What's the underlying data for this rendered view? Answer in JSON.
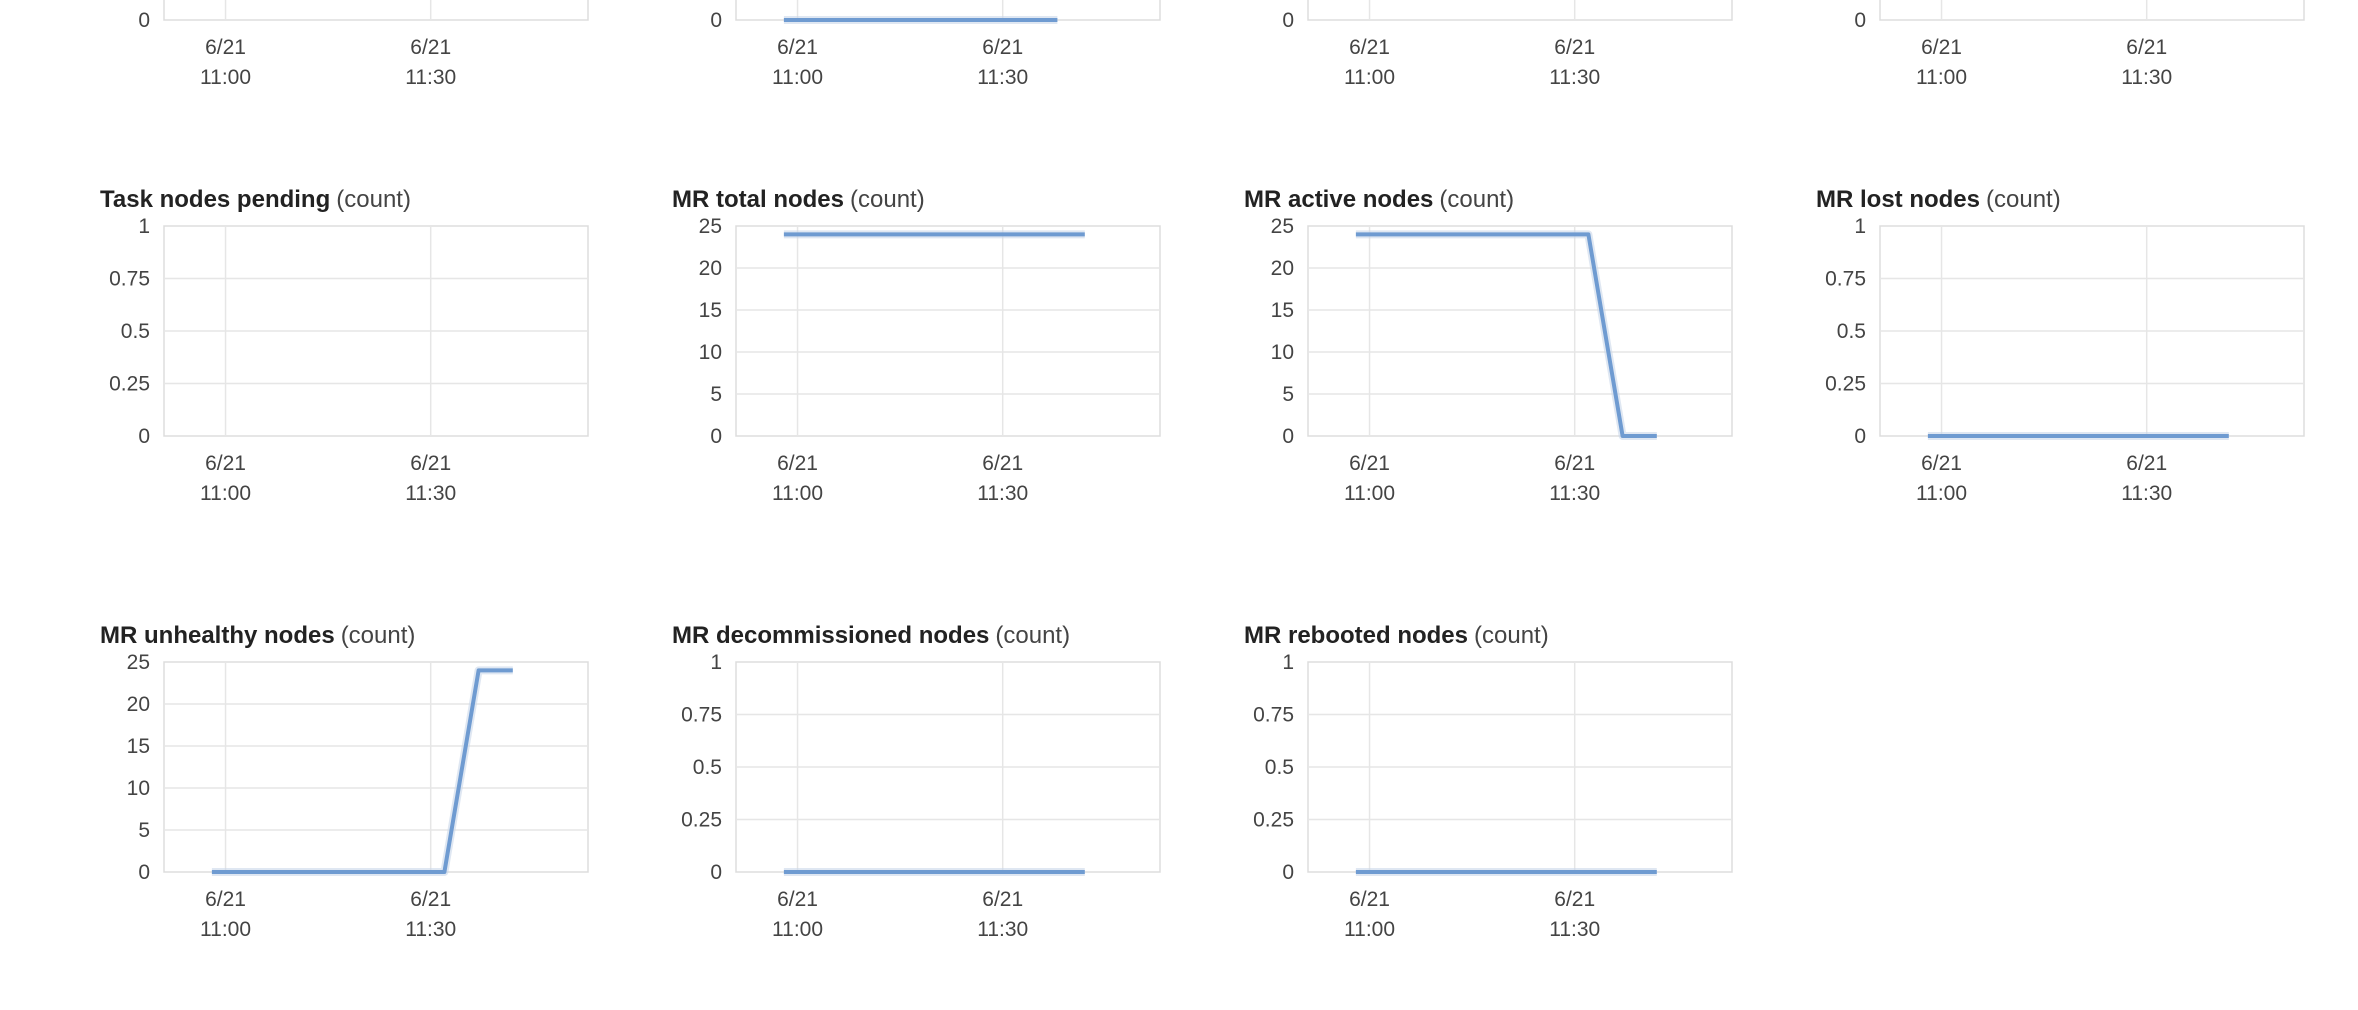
{
  "colors": {
    "series": "#6f9bd1",
    "grid": "#e6e6e6",
    "axis": "#dddddd"
  },
  "chart_data": [
    {
      "id": "top-1",
      "type": "line",
      "title": "",
      "unit": "",
      "partial": true,
      "yticks": [
        "0"
      ],
      "xticks": [
        [
          "6/21",
          "11:00"
        ],
        [
          "6/21",
          "11:30"
        ]
      ],
      "x_range": [
        "10:51",
        "11:53"
      ],
      "ylim": [
        0,
        1
      ],
      "series": []
    },
    {
      "id": "top-2",
      "type": "line",
      "title": "",
      "unit": "",
      "partial": true,
      "yticks": [
        "0"
      ],
      "xticks": [
        [
          "6/21",
          "11:00"
        ],
        [
          "6/21",
          "11:30"
        ]
      ],
      "x_range": [
        "10:51",
        "11:53"
      ],
      "ylim": [
        0,
        1
      ],
      "series": [
        {
          "points": [
            [
              "10:58",
              0
            ],
            [
              "11:38",
              0
            ]
          ]
        }
      ]
    },
    {
      "id": "top-3",
      "type": "line",
      "title": "",
      "unit": "",
      "partial": true,
      "yticks": [
        "0"
      ],
      "xticks": [
        [
          "6/21",
          "11:00"
        ],
        [
          "6/21",
          "11:30"
        ]
      ],
      "x_range": [
        "10:51",
        "11:53"
      ],
      "ylim": [
        0,
        1
      ],
      "series": []
    },
    {
      "id": "top-4",
      "type": "line",
      "title": "",
      "unit": "",
      "partial": true,
      "yticks": [
        "0"
      ],
      "xticks": [
        [
          "6/21",
          "11:00"
        ],
        [
          "6/21",
          "11:30"
        ]
      ],
      "x_range": [
        "10:51",
        "11:53"
      ],
      "ylim": [
        0,
        1
      ],
      "series": []
    },
    {
      "id": "task-nodes-pending",
      "type": "line",
      "title": "Task nodes pending",
      "unit": "(count)",
      "yticks": [
        "0",
        "0.25",
        "0.5",
        "0.75",
        "1"
      ],
      "xticks": [
        [
          "6/21",
          "11:00"
        ],
        [
          "6/21",
          "11:30"
        ]
      ],
      "x_range": [
        "10:51",
        "11:53"
      ],
      "ylim": [
        0,
        1
      ],
      "series": []
    },
    {
      "id": "mr-total-nodes",
      "type": "line",
      "title": "MR total nodes",
      "unit": "(count)",
      "yticks": [
        "0",
        "5",
        "10",
        "15",
        "20",
        "25"
      ],
      "xticks": [
        [
          "6/21",
          "11:00"
        ],
        [
          "6/21",
          "11:30"
        ]
      ],
      "x_range": [
        "10:51",
        "11:53"
      ],
      "ylim": [
        0,
        25
      ],
      "series": [
        {
          "points": [
            [
              "10:58",
              24
            ],
            [
              "11:42",
              24
            ]
          ]
        }
      ]
    },
    {
      "id": "mr-active-nodes",
      "type": "line",
      "title": "MR active nodes",
      "unit": "(count)",
      "yticks": [
        "0",
        "5",
        "10",
        "15",
        "20",
        "25"
      ],
      "xticks": [
        [
          "6/21",
          "11:00"
        ],
        [
          "6/21",
          "11:30"
        ]
      ],
      "x_range": [
        "10:51",
        "11:53"
      ],
      "ylim": [
        0,
        25
      ],
      "series": [
        {
          "points": [
            [
              "10:58",
              24
            ],
            [
              "11:32",
              24
            ],
            [
              "11:37",
              0
            ],
            [
              "11:42",
              0
            ]
          ]
        }
      ]
    },
    {
      "id": "mr-lost-nodes",
      "type": "line",
      "title": "MR lost nodes",
      "unit": "(count)",
      "yticks": [
        "0",
        "0.25",
        "0.5",
        "0.75",
        "1"
      ],
      "xticks": [
        [
          "6/21",
          "11:00"
        ],
        [
          "6/21",
          "11:30"
        ]
      ],
      "x_range": [
        "10:51",
        "11:53"
      ],
      "ylim": [
        0,
        1
      ],
      "series": [
        {
          "points": [
            [
              "10:58",
              0
            ],
            [
              "11:42",
              0
            ]
          ]
        }
      ]
    },
    {
      "id": "mr-unhealthy-nodes",
      "type": "line",
      "title": "MR unhealthy nodes",
      "unit": "(count)",
      "yticks": [
        "0",
        "5",
        "10",
        "15",
        "20",
        "25"
      ],
      "xticks": [
        [
          "6/21",
          "11:00"
        ],
        [
          "6/21",
          "11:30"
        ]
      ],
      "x_range": [
        "10:51",
        "11:53"
      ],
      "ylim": [
        0,
        25
      ],
      "series": [
        {
          "points": [
            [
              "10:58",
              0
            ],
            [
              "11:32",
              0
            ],
            [
              "11:37",
              24
            ],
            [
              "11:42",
              24
            ]
          ]
        }
      ]
    },
    {
      "id": "mr-decommissioned-nodes",
      "type": "line",
      "title": "MR decommissioned nodes",
      "unit": "(count)",
      "yticks": [
        "0",
        "0.25",
        "0.5",
        "0.75",
        "1"
      ],
      "xticks": [
        [
          "6/21",
          "11:00"
        ],
        [
          "6/21",
          "11:30"
        ]
      ],
      "x_range": [
        "10:51",
        "11:53"
      ],
      "ylim": [
        0,
        1
      ],
      "series": [
        {
          "points": [
            [
              "10:58",
              0
            ],
            [
              "11:42",
              0
            ]
          ]
        }
      ]
    },
    {
      "id": "mr-rebooted-nodes",
      "type": "line",
      "title": "MR rebooted nodes",
      "unit": "(count)",
      "yticks": [
        "0",
        "0.25",
        "0.5",
        "0.75",
        "1"
      ],
      "xticks": [
        [
          "6/21",
          "11:00"
        ],
        [
          "6/21",
          "11:30"
        ]
      ],
      "x_range": [
        "10:51",
        "11:53"
      ],
      "ylim": [
        0,
        1
      ],
      "series": [
        {
          "points": [
            [
              "10:58",
              0
            ],
            [
              "11:42",
              0
            ]
          ]
        }
      ]
    }
  ]
}
